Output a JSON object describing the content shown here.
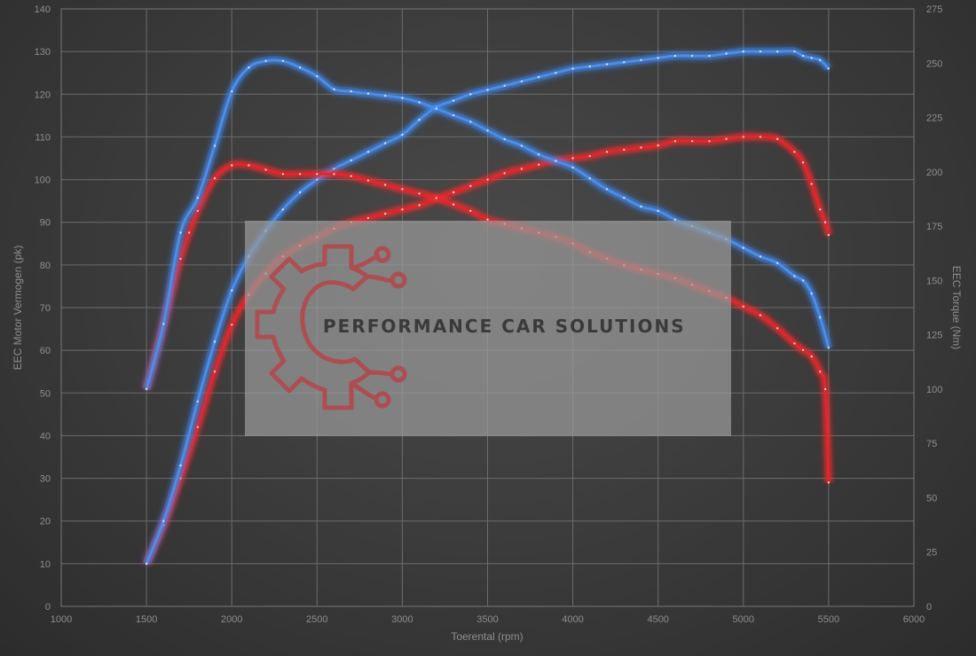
{
  "chart_data": {
    "type": "line",
    "title": "",
    "xlabel": "Toerental (rpm)",
    "ylabel_left": "EEC Motor Vermogen (pk)",
    "ylabel_right": "EEC Torque (Nm)",
    "xlim": [
      1000,
      6000
    ],
    "xticks": [
      1000,
      1500,
      2000,
      2500,
      3000,
      3500,
      4000,
      4500,
      5000,
      5500,
      6000
    ],
    "ylim_left": [
      0,
      140
    ],
    "yticks_left": [
      0,
      10,
      20,
      30,
      40,
      50,
      60,
      70,
      80,
      90,
      100,
      110,
      120,
      130,
      140
    ],
    "ylim_right": [
      0,
      275
    ],
    "yticks_right": [
      0,
      25,
      50,
      75,
      100,
      125,
      150,
      175,
      200,
      225,
      250,
      275
    ],
    "grid": true,
    "legend": "none",
    "series": [
      {
        "axis": "left",
        "color": "#e8232a",
        "glow": "#ff3030",
        "x": [
          1500,
          1600,
          1700,
          1800,
          1900,
          2000,
          2100,
          2200,
          2300,
          2400,
          2500,
          2600,
          2700,
          2800,
          2900,
          3000,
          3100,
          3200,
          3300,
          3400,
          3500,
          3600,
          3700,
          3800,
          3900,
          4000,
          4100,
          4200,
          4300,
          4400,
          4500,
          4600,
          4700,
          4800,
          4900,
          5000,
          5100,
          5200,
          5300,
          5350,
          5400,
          5450,
          5480,
          5500
        ],
        "y": [
          10,
          19,
          30,
          42,
          55,
          66,
          73,
          78,
          82,
          84.5,
          86.5,
          88.5,
          90,
          91,
          92,
          93,
          94,
          95.5,
          97,
          98.5,
          100,
          101.5,
          102.5,
          103.5,
          104.5,
          105,
          105.5,
          106.5,
          107,
          107.5,
          108,
          109,
          109,
          109,
          109.5,
          110,
          110,
          109.5,
          106.5,
          104,
          99,
          93,
          90,
          87
        ]
      },
      {
        "axis": "left",
        "color": "#4a8ee8",
        "glow": "#3f8cff",
        "x": [
          1500,
          1600,
          1700,
          1800,
          1900,
          2000,
          2100,
          2200,
          2300,
          2400,
          2500,
          2600,
          2700,
          2800,
          2900,
          3000,
          3100,
          3200,
          3300,
          3400,
          3500,
          3600,
          3700,
          3800,
          3900,
          4000,
          4100,
          4200,
          4300,
          4400,
          4500,
          4600,
          4700,
          4800,
          4900,
          5000,
          5100,
          5200,
          5300,
          5350,
          5400,
          5450,
          5500
        ],
        "y": [
          10,
          20,
          33,
          48,
          62,
          74,
          82,
          88,
          93,
          97,
          100,
          102.5,
          104.5,
          106.5,
          108.5,
          110.5,
          114,
          117,
          118.5,
          120,
          121,
          122,
          123,
          124,
          125,
          126,
          126.5,
          127,
          127.5,
          128,
          128.5,
          129,
          129,
          129,
          129.5,
          130,
          130,
          130,
          130,
          129,
          128.5,
          128,
          126
        ]
      },
      {
        "axis": "right",
        "color": "#e8232a",
        "glow": "#ff3030",
        "x": [
          1500,
          1600,
          1700,
          1750,
          1800,
          1900,
          2000,
          2100,
          2200,
          2300,
          2400,
          2500,
          2600,
          2700,
          2800,
          2900,
          3000,
          3100,
          3200,
          3300,
          3400,
          3500,
          3600,
          3700,
          3800,
          3900,
          4000,
          4100,
          4200,
          4300,
          4400,
          4500,
          4600,
          4700,
          4800,
          4900,
          5000,
          5100,
          5200,
          5300,
          5350,
          5400,
          5450,
          5480,
          5500
        ],
        "y": [
          100,
          130,
          160,
          172,
          182,
          197,
          203,
          203,
          201,
          199,
          199,
          199,
          199,
          198,
          196,
          194,
          192,
          190,
          188,
          185,
          182,
          178,
          176,
          174,
          172,
          170,
          167,
          163,
          160,
          157,
          155,
          153,
          151,
          148,
          145,
          142,
          138,
          134,
          128,
          121,
          118,
          115,
          108,
          100,
          57
        ]
      },
      {
        "axis": "right",
        "color": "#4a8ee8",
        "glow": "#3f8cff",
        "x": [
          1500,
          1600,
          1700,
          1800,
          1900,
          2000,
          2100,
          2200,
          2300,
          2400,
          2500,
          2600,
          2700,
          2800,
          2900,
          3000,
          3100,
          3200,
          3300,
          3400,
          3500,
          3600,
          3700,
          3800,
          3900,
          4000,
          4100,
          4200,
          4300,
          4400,
          4500,
          4600,
          4700,
          4800,
          4900,
          5000,
          5100,
          5200,
          5300,
          5350,
          5400,
          5450,
          5500
        ],
        "y": [
          100,
          130,
          172,
          188,
          212,
          237,
          248,
          251,
          251,
          248,
          244,
          238,
          237,
          236,
          235,
          234,
          232,
          229,
          226,
          223,
          219,
          215,
          212,
          208,
          205,
          202,
          197,
          192,
          188,
          184,
          182,
          178,
          175,
          172,
          169,
          165,
          161,
          158,
          152,
          150,
          144,
          133,
          119
        ]
      }
    ]
  },
  "watermark": {
    "text": "PERFORMANCE CAR SOLUTIONS",
    "panel_color": "#9a9a9a",
    "logo_color": "#b5454a"
  }
}
